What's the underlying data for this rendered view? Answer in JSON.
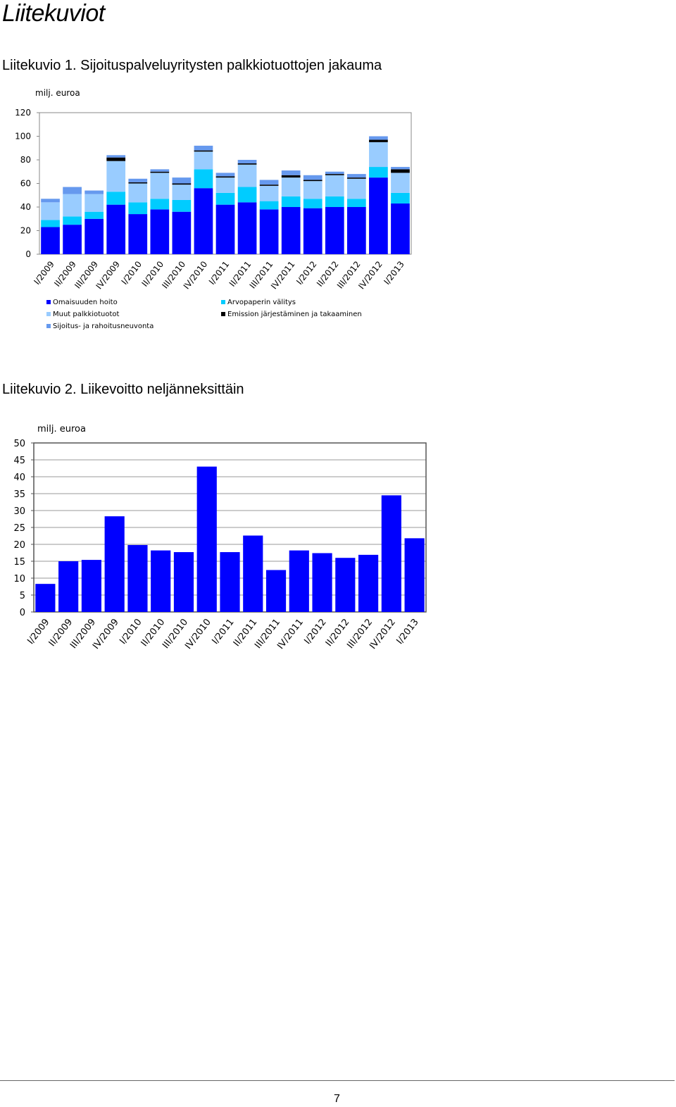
{
  "document": {
    "title": "Liitekuviot",
    "page_number": "7"
  },
  "figures": [
    {
      "caption": "Liitekuvio 1. Sijoituspalveluyritysten palkkiotuottojen jakauma"
    },
    {
      "caption": "Liitekuvio 2. Liikevoitto neljänneksittäin"
    }
  ],
  "chart_data": [
    {
      "type": "bar",
      "stacked": true,
      "unit_label": "milj. euroa",
      "ylim": [
        0,
        120
      ],
      "yticks": [
        0,
        20,
        40,
        60,
        80,
        100,
        120
      ],
      "grid": false,
      "legend_position": "bottom",
      "categories": [
        "I/2009",
        "II/2009",
        "III/2009",
        "IV/2009",
        "I/2010",
        "II/2010",
        "III/2010",
        "IV/2010",
        "I/2011",
        "II/2011",
        "III/2011",
        "IV/2011",
        "I/2012",
        "II/2012",
        "III/2012",
        "IV/2012",
        "I/2013"
      ],
      "series": [
        {
          "name": "Omaisuuden hoito",
          "color": "#0000ff",
          "values": [
            23,
            25,
            30,
            42,
            34,
            38,
            36,
            56,
            42,
            44,
            38,
            40,
            39,
            40,
            40,
            65,
            43
          ]
        },
        {
          "name": "Arvopaperin välitys",
          "color": "#00ccff",
          "values": [
            6,
            7,
            6,
            11,
            10,
            9,
            10,
            16,
            10,
            13,
            7,
            9,
            8,
            9,
            7,
            9,
            9
          ]
        },
        {
          "name": "Muut palkkiotuotot",
          "color": "#99ccff",
          "values": [
            15,
            19,
            15,
            26,
            16,
            22,
            13,
            15,
            13,
            19,
            13,
            16,
            15,
            18,
            17,
            21,
            17
          ]
        },
        {
          "name": "Emission järjestäminen ja takaaminen",
          "color": "#000000",
          "values": [
            0,
            0,
            0,
            3,
            1,
            1,
            1,
            1,
            1,
            1,
            1,
            2,
            1,
            1,
            1,
            2,
            3
          ]
        },
        {
          "name": "Sijoitus- ja rahoitusneuvonta",
          "color": "#6699ee",
          "values": [
            3,
            6,
            3,
            2,
            3,
            2,
            5,
            4,
            3,
            3,
            4,
            4,
            4,
            2,
            3,
            3,
            2
          ]
        }
      ]
    },
    {
      "type": "bar",
      "unit_label": "milj. euroa",
      "ylim": [
        0,
        50
      ],
      "yticks": [
        0,
        5,
        10,
        15,
        20,
        25,
        30,
        35,
        40,
        45,
        50
      ],
      "grid": true,
      "bar_color": "#0000ff",
      "categories": [
        "I/2009",
        "II/2009",
        "III/2009",
        "IV/2009",
        "I/2010",
        "II/2010",
        "III/2010",
        "IV/2010",
        "I/2011",
        "II/2011",
        "III/2011",
        "IV/2011",
        "I/2012",
        "II/2012",
        "III/2012",
        "IV/2012",
        "I/2013"
      ],
      "values": [
        8.3,
        15,
        15.4,
        28.3,
        19.8,
        18.2,
        17.7,
        43,
        17.7,
        22.6,
        12.4,
        18.2,
        17.4,
        16,
        16.9,
        34.5,
        21.8
      ]
    }
  ]
}
